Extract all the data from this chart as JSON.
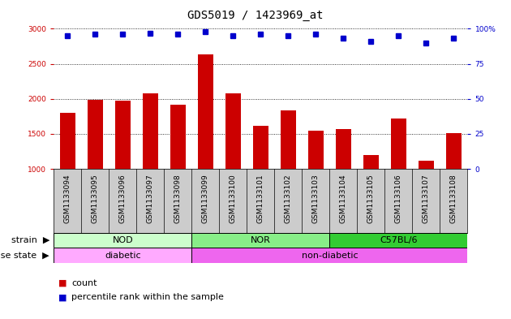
{
  "title": "GDS5019 / 1423969_at",
  "samples": [
    "GSM1133094",
    "GSM1133095",
    "GSM1133096",
    "GSM1133097",
    "GSM1133098",
    "GSM1133099",
    "GSM1133100",
    "GSM1133101",
    "GSM1133102",
    "GSM1133103",
    "GSM1133104",
    "GSM1133105",
    "GSM1133106",
    "GSM1133107",
    "GSM1133108"
  ],
  "counts": [
    1800,
    1990,
    1970,
    2080,
    1920,
    2630,
    2080,
    1610,
    1840,
    1550,
    1570,
    1200,
    1720,
    1120,
    1510
  ],
  "percentiles": [
    95,
    96,
    96,
    97,
    96,
    98,
    95,
    96,
    95,
    96,
    93,
    91,
    95,
    90,
    93
  ],
  "ylim_left": [
    1000,
    3000
  ],
  "ylim_right": [
    0,
    100
  ],
  "yticks_left": [
    1000,
    1500,
    2000,
    2500,
    3000
  ],
  "yticks_right": [
    0,
    25,
    50,
    75,
    100
  ],
  "bar_color": "#cc0000",
  "dot_color": "#0000cc",
  "strains": [
    {
      "label": "NOD",
      "start": 0,
      "end": 5,
      "color": "#ccffcc"
    },
    {
      "label": "NOR",
      "start": 5,
      "end": 10,
      "color": "#88ee88"
    },
    {
      "label": "C57BL/6",
      "start": 10,
      "end": 15,
      "color": "#33cc33"
    }
  ],
  "disease_states": [
    {
      "label": "diabetic",
      "start": 0,
      "end": 5,
      "color": "#ffaaff"
    },
    {
      "label": "non-diabetic",
      "start": 5,
      "end": 15,
      "color": "#ee66ee"
    }
  ],
  "tick_bg_color": "#cccccc",
  "plot_bg": "#ffffff",
  "grid_color": "#000000",
  "title_fontsize": 10,
  "tick_fontsize": 6.5,
  "label_fontsize": 8
}
